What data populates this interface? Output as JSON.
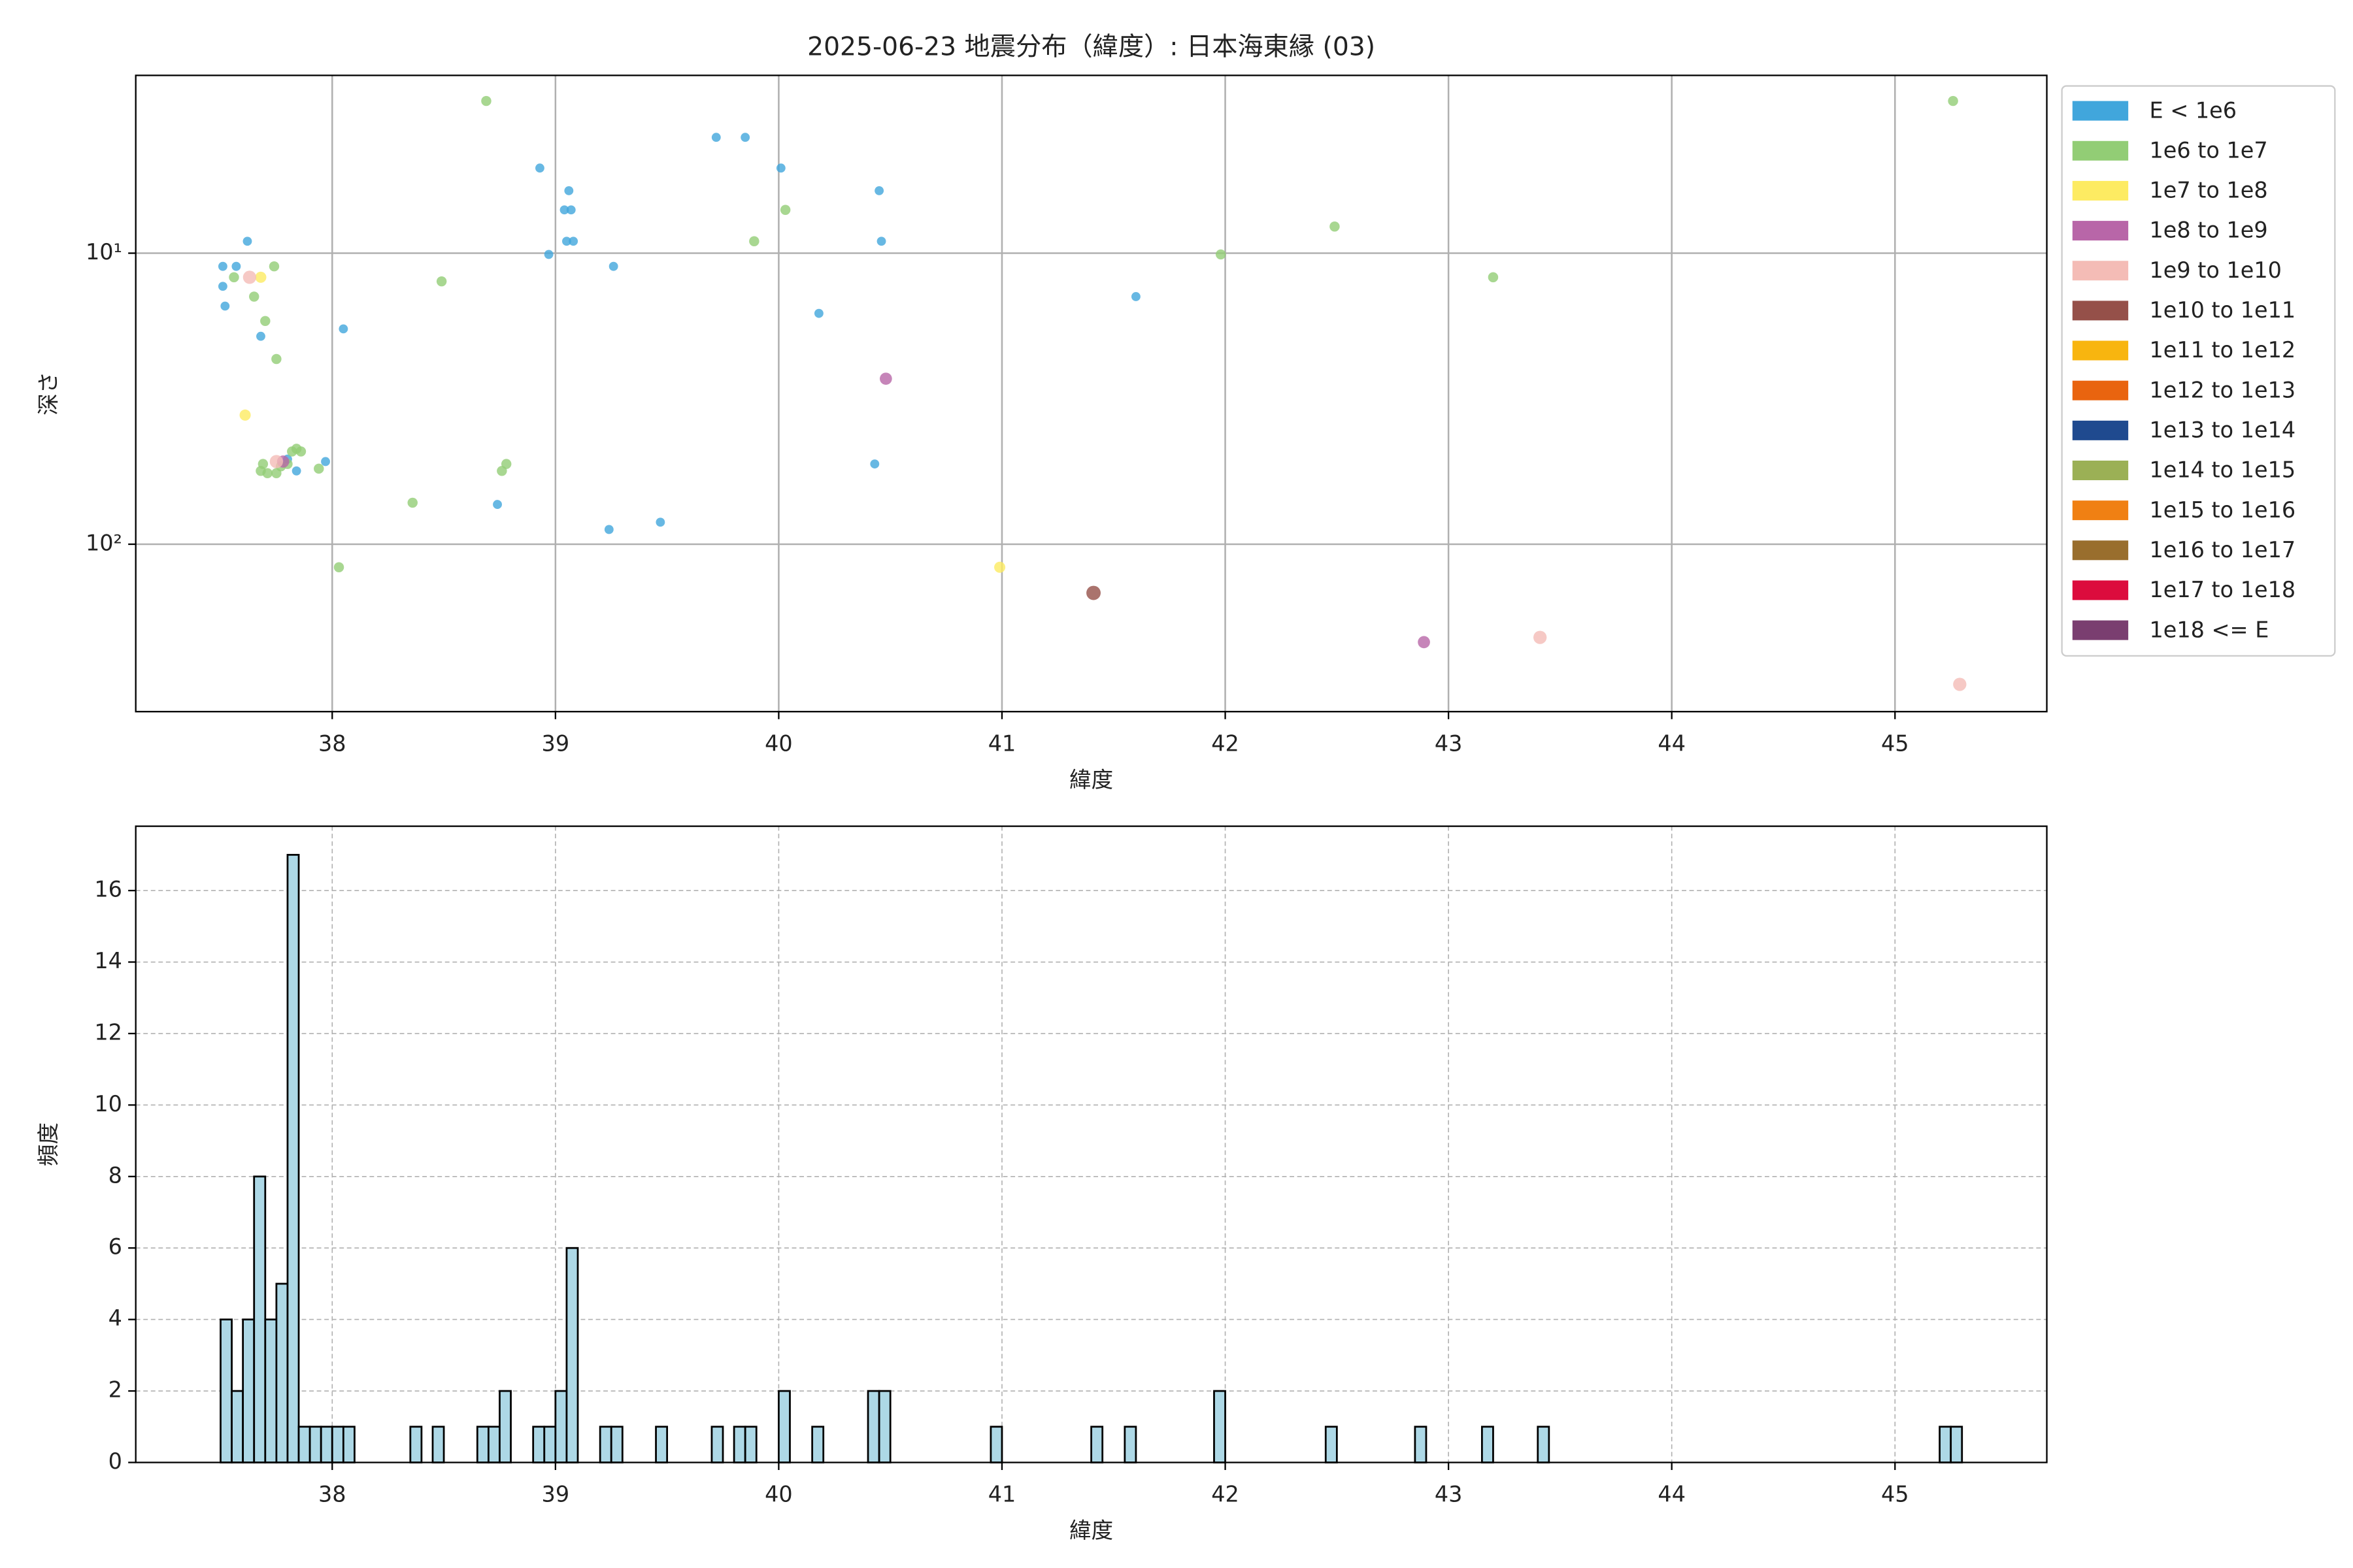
{
  "chart_data": [
    {
      "type": "scatter",
      "title": "2025-06-23 地震分布（緯度）: 日本海東縁 (03)",
      "x_label": "緯度",
      "y_label": "深さ",
      "xlim": [
        37.12,
        45.68
      ],
      "xticks": [
        38,
        39,
        40,
        41,
        42,
        43,
        44,
        45
      ],
      "ylim": [
        2.45,
        376
      ],
      "y_scale": "log",
      "y_inverted": true,
      "yticks": [
        {
          "value": 10,
          "label": "10¹"
        },
        {
          "value": 100,
          "label": "10²"
        }
      ],
      "grid": true,
      "legend": "outside-right",
      "series": [
        {
          "name": "E < 1e6",
          "color": "#41a6dc",
          "x": [
            37.51,
            37.51,
            37.52,
            37.57,
            37.62,
            37.68,
            38.05,
            37.8,
            37.84,
            37.97,
            38.74,
            38.93,
            38.97,
            39.06,
            39.04,
            39.07,
            39.05,
            39.08,
            39.26,
            39.24,
            39.47,
            39.72,
            39.85,
            40.01,
            40.18,
            40.45,
            40.46,
            40.43,
            41.6
          ],
          "values": [
            11.1,
            13,
            15.2,
            11.1,
            9.1,
            19.3,
            18.2,
            51,
            56,
            52,
            73,
            5.1,
            10.1,
            6.1,
            7.1,
            7.1,
            9.1,
            9.1,
            11.1,
            89,
            84,
            4,
            4,
            5.1,
            16.1,
            6.1,
            9.1,
            53,
            14.1
          ]
        },
        {
          "name": "1e6 to 1e7",
          "color": "#92cd75",
          "x": [
            38.69,
            45.26,
            40.03,
            39.89,
            42.49,
            41.98,
            43.2,
            38.49,
            37.74,
            37.56,
            37.65,
            37.7,
            37.75,
            38.36,
            38.03,
            38.78,
            38.76,
            37.68,
            37.69,
            37.71,
            37.75,
            37.77,
            37.8,
            37.82,
            37.84,
            37.86,
            37.94
          ],
          "values": [
            3,
            3,
            7.1,
            9.1,
            8.1,
            10.1,
            12.1,
            12.5,
            11.1,
            12.1,
            14.1,
            17.1,
            23.1,
            72,
            120,
            53,
            56,
            56,
            53,
            57,
            57,
            54,
            53,
            48,
            47,
            48,
            55
          ]
        },
        {
          "name": "1e7 to 1e8",
          "color": "#fdeb62",
          "x": [
            37.68,
            37.61,
            40.99
          ],
          "values": [
            12.1,
            36,
            120
          ]
        },
        {
          "name": "1e8 to 1e9",
          "color": "#b866a8",
          "x": [
            40.48,
            42.89,
            37.78
          ],
          "values": [
            27,
            217,
            52
          ]
        },
        {
          "name": "1e9 to 1e10",
          "color": "#f4bcb6",
          "x": [
            37.63,
            43.41,
            45.29,
            37.75
          ],
          "values": [
            12.1,
            209,
            303,
            52
          ]
        },
        {
          "name": "1e10 to 1e11",
          "color": "#955049",
          "x": [
            41.41
          ],
          "values": [
            147
          ]
        },
        {
          "name": "1e11 to 1e12",
          "color": "#f8b50f",
          "x": [],
          "values": []
        },
        {
          "name": "1e12 to 1e13",
          "color": "#e9640f",
          "x": [],
          "values": []
        },
        {
          "name": "1e13 to 1e14",
          "color": "#1f4a8f",
          "x": [],
          "values": []
        },
        {
          "name": "1e14 to 1e15",
          "color": "#9bb055",
          "x": [],
          "values": []
        },
        {
          "name": "1e15 to 1e16",
          "color": "#f08013",
          "x": [],
          "values": []
        },
        {
          "name": "1e16 to 1e17",
          "color": "#996e2d",
          "x": [],
          "values": []
        },
        {
          "name": "1e17 to 1e18",
          "color": "#dc0c3d",
          "x": [],
          "values": []
        },
        {
          "name": "1e18 <= E",
          "color": "#7a3e70",
          "x": [],
          "values": []
        }
      ]
    },
    {
      "type": "histogram",
      "x_label": "緯度",
      "y_label": "頻度",
      "xlim": [
        37.12,
        45.68
      ],
      "xticks": [
        38,
        39,
        40,
        41,
        42,
        43,
        44,
        45
      ],
      "ylim": [
        0,
        17.8
      ],
      "yticks": [
        0,
        2,
        4,
        6,
        8,
        10,
        12,
        14,
        16
      ],
      "grid": true,
      "grid_style": "dashed",
      "color": "#add8e6",
      "edgecolor": "#000000",
      "bins": [
        37.5,
        37.55,
        37.6,
        37.65,
        37.7,
        37.75,
        37.8,
        37.85,
        37.9,
        37.95,
        38,
        38.05,
        38.1,
        38.15,
        38.2,
        38.25,
        38.3,
        38.35,
        38.4,
        38.45,
        38.5,
        38.55,
        38.6,
        38.65,
        38.7,
        38.75,
        38.8,
        38.85,
        38.9,
        38.95,
        39,
        39.05,
        39.1,
        39.15,
        39.2,
        39.25,
        39.3,
        39.35,
        39.4,
        39.45,
        39.5,
        39.55,
        39.6,
        39.65,
        39.7,
        39.75,
        39.8,
        39.85,
        39.9,
        39.95,
        40,
        40.05,
        40.1,
        40.15,
        40.2,
        40.25,
        40.3,
        40.35,
        40.4,
        40.45,
        40.5,
        40.55,
        40.6,
        40.65,
        40.7,
        40.75,
        40.8,
        40.85,
        40.9,
        40.95,
        41,
        41.05,
        41.1,
        41.15,
        41.2,
        41.25,
        41.3,
        41.35,
        41.4,
        41.45,
        41.5,
        41.55,
        41.6,
        41.65,
        41.7,
        41.75,
        41.8,
        41.85,
        41.9,
        41.95,
        42,
        42.05,
        42.1,
        42.15,
        42.2,
        42.25,
        42.3,
        42.35,
        42.4,
        42.45,
        42.5,
        42.55,
        42.6,
        42.65,
        42.7,
        42.75,
        42.8,
        42.85,
        42.9,
        42.95,
        43,
        43.05,
        43.1,
        43.15,
        43.2,
        43.25,
        43.3,
        43.35,
        43.4,
        43.45,
        43.5,
        43.55,
        43.6,
        43.65,
        43.7,
        43.75,
        43.8,
        43.85,
        43.9,
        43.95,
        44,
        44.05,
        44.1,
        44.15,
        44.2,
        44.25,
        44.3,
        44.35,
        44.4,
        44.45,
        44.5,
        44.55,
        44.6,
        44.65,
        44.7,
        44.75,
        44.8,
        44.85,
        44.9,
        44.95,
        45,
        45.05,
        45.1,
        45.15,
        45.2,
        45.25,
        45.3
      ],
      "values": [
        4,
        2,
        4,
        8,
        4,
        5,
        17,
        1,
        1,
        1,
        1,
        1,
        0,
        0,
        0,
        0,
        0,
        1,
        0,
        1,
        0,
        0,
        0,
        1,
        1,
        2,
        0,
        0,
        1,
        1,
        2,
        6,
        0,
        0,
        1,
        1,
        0,
        0,
        0,
        1,
        0,
        0,
        0,
        0,
        1,
        0,
        1,
        1,
        0,
        0,
        2,
        0,
        0,
        1,
        0,
        0,
        0,
        0,
        2,
        2,
        0,
        0,
        0,
        0,
        0,
        0,
        0,
        0,
        0,
        1,
        0,
        0,
        0,
        0,
        0,
        0,
        0,
        0,
        1,
        0,
        0,
        1,
        0,
        0,
        0,
        0,
        0,
        0,
        0,
        2,
        0,
        0,
        0,
        0,
        0,
        0,
        0,
        0,
        0,
        1,
        0,
        0,
        0,
        0,
        0,
        0,
        0,
        1,
        0,
        0,
        0,
        0,
        0,
        1,
        0,
        0,
        0,
        0,
        1,
        0,
        0,
        0,
        0,
        0,
        0,
        0,
        0,
        0,
        0,
        0,
        0,
        0,
        0,
        0,
        0,
        0,
        0,
        0,
        0,
        0,
        0,
        0,
        0,
        0,
        0,
        0,
        0,
        0,
        0,
        0,
        0,
        0,
        0,
        0,
        1,
        1
      ]
    }
  ]
}
